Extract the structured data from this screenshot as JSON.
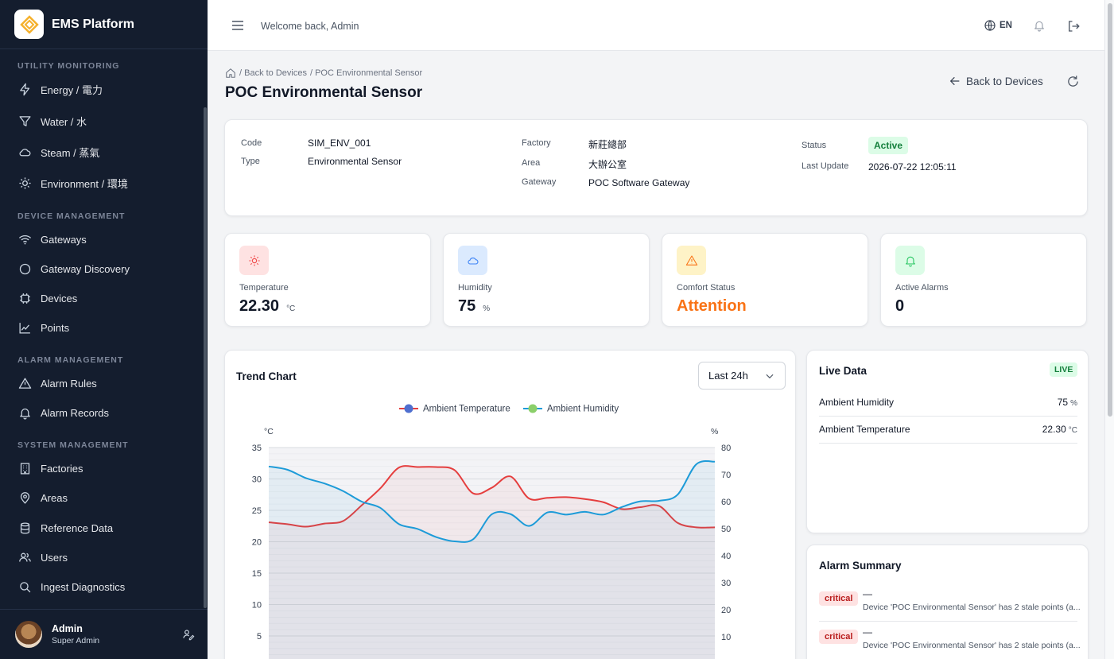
{
  "app": {
    "name": "EMS Platform"
  },
  "header": {
    "welcome": "Welcome back, Admin",
    "lang": "EN"
  },
  "sidebar": {
    "sections": [
      {
        "title": "UTILITY MONITORING",
        "items": [
          {
            "label": "Energy / 電力",
            "icon": "bolt-icon"
          },
          {
            "label": "Water / 水",
            "icon": "filter-icon"
          },
          {
            "label": "Steam / 蒸氣",
            "icon": "cloud-icon"
          },
          {
            "label": "Environment / 環境",
            "icon": "sun-icon"
          }
        ]
      },
      {
        "title": "DEVICE MANAGEMENT",
        "items": [
          {
            "label": "Gateways",
            "icon": "wifi-icon"
          },
          {
            "label": "Gateway Discovery",
            "icon": "circle-icon"
          },
          {
            "label": "Devices",
            "icon": "chip-icon"
          },
          {
            "label": "Points",
            "icon": "chart-line-icon"
          }
        ]
      },
      {
        "title": "ALARM MANAGEMENT",
        "items": [
          {
            "label": "Alarm Rules",
            "icon": "warning-icon"
          },
          {
            "label": "Alarm Records",
            "icon": "bell-icon"
          }
        ]
      },
      {
        "title": "SYSTEM MANAGEMENT",
        "items": [
          {
            "label": "Factories",
            "icon": "building-icon"
          },
          {
            "label": "Areas",
            "icon": "location-icon"
          },
          {
            "label": "Reference Data",
            "icon": "database-icon"
          },
          {
            "label": "Users",
            "icon": "users-icon"
          },
          {
            "label": "Ingest Diagnostics",
            "icon": "search-icon"
          }
        ]
      }
    ],
    "user": {
      "name": "Admin",
      "role": "Super Admin"
    }
  },
  "breadcrumb": {
    "back": "/ Back to Devices",
    "current": "/ POC Environmental Sensor"
  },
  "page": {
    "title": "POC Environmental Sensor",
    "back_label": "Back to Devices"
  },
  "device": {
    "code_label": "Code",
    "code": "SIM_ENV_001",
    "type_label": "Type",
    "type": "Environmental Sensor",
    "factory_label": "Factory",
    "factory": "新莊總部",
    "area_label": "Area",
    "area": "大辦公室",
    "gateway_label": "Gateway",
    "gateway": "POC Software Gateway",
    "status_label": "Status",
    "status": "Active",
    "last_update_label": "Last Update",
    "last_update": "2026-07-22 12:05:11"
  },
  "stats": [
    {
      "label": "Temperature",
      "value": "22.30",
      "unit": "°C",
      "icon": "sun-icon",
      "bg": "#fee2e2",
      "fg": "#ef4444"
    },
    {
      "label": "Humidity",
      "value": "75",
      "unit": "%",
      "icon": "cloud-icon",
      "bg": "#dbeafe",
      "fg": "#3b82f6"
    },
    {
      "label": "Comfort Status",
      "value": "Attention",
      "unit": "",
      "icon": "warning-icon",
      "bg": "#fef3c7",
      "fg": "#f97316",
      "value_color": "#f97316"
    },
    {
      "label": "Active Alarms",
      "value": "0",
      "unit": "",
      "icon": "bell-icon",
      "bg": "#dcfce7",
      "fg": "#22c55e"
    }
  ],
  "trend": {
    "title": "Trend Chart",
    "range": "Last 24h"
  },
  "chart_data": {
    "type": "line",
    "title": "",
    "legend_position": "top-center",
    "y_left_unit": "°C",
    "y_right_unit": "%",
    "ylim_left": [
      0,
      35
    ],
    "ylim_right": [
      0,
      80
    ],
    "y_left_ticks": [
      5,
      10,
      15,
      20,
      25,
      30,
      35
    ],
    "y_right_ticks": [
      10,
      20,
      30,
      40,
      50,
      60,
      70,
      80
    ],
    "grid": true,
    "series": [
      {
        "name": "Ambient Temperature",
        "axis": "left",
        "color": "#e53e3e",
        "values": [
          23.1,
          22.8,
          22.4,
          22.9,
          23.3,
          25.8,
          28.5,
          31.8,
          31.9,
          31.9,
          31.4,
          27.7,
          28.6,
          30.4,
          26.9,
          27.0,
          27.1,
          26.8,
          26.3,
          25.2,
          25.5,
          25.7,
          23.0,
          22.3,
          22.3
        ]
      },
      {
        "name": "Ambient Humidity",
        "axis": "right",
        "color": "#1d9bd8",
        "values": [
          73.0,
          71.8,
          68.7,
          66.7,
          63.9,
          60.0,
          57.7,
          51.7,
          49.9,
          46.9,
          45.3,
          46.1,
          55.3,
          55.4,
          51.0,
          56.0,
          55.2,
          56.2,
          55.2,
          58.0,
          60.1,
          60.3,
          62.6,
          73.8,
          74.8
        ]
      }
    ]
  },
  "live": {
    "title": "Live Data",
    "badge": "LIVE",
    "rows": [
      {
        "label": "Ambient Humidity",
        "value": "75",
        "unit": "%"
      },
      {
        "label": "Ambient Temperature",
        "value": "22.30",
        "unit": "°C"
      }
    ]
  },
  "alarms": {
    "title": "Alarm Summary",
    "rows": [
      {
        "severity": "critical",
        "title": "—",
        "message": "Device 'POC Environmental Sensor' has 2 stale points (a..."
      },
      {
        "severity": "critical",
        "title": "—",
        "message": "Device 'POC Environmental Sensor' has 2 stale points (a..."
      }
    ]
  }
}
